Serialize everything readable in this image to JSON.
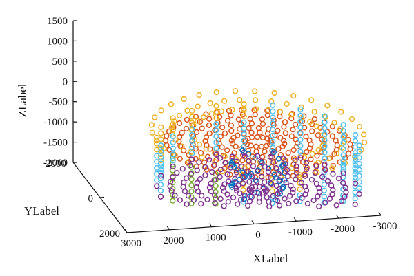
{
  "chart_data": {
    "type": "scatter",
    "projection": "3d",
    "marker": "circle",
    "xlabel": "XLabel",
    "ylabel": "YLabel",
    "zlabel": "ZLabel",
    "xlim": [
      -3000,
      3000
    ],
    "ylim": [
      -2000,
      2000
    ],
    "zlim": [
      -2000,
      1500
    ],
    "x_ticks": [
      3000,
      2000,
      1000,
      0,
      -1000,
      -2000,
      -3000
    ],
    "y_ticks": [
      -2000,
      0,
      2000
    ],
    "z_ticks": [
      1500,
      1000,
      500,
      0,
      -500,
      -1000,
      -1500,
      -2000
    ],
    "x_tick_labels": [
      "3000",
      "2000",
      "1000",
      "0",
      "-1000",
      "-2000",
      "-3000"
    ],
    "y_tick_labels": [
      "-2000",
      "0",
      "2000"
    ],
    "z_tick_labels": [
      "1500",
      "1000",
      "500",
      "0",
      "-500",
      "-1000",
      "-1500",
      "-2000"
    ],
    "grid": false,
    "colors": {
      "top_spiral": "#d95319",
      "upper_rings": "#edb120",
      "side_points": "#4dbeee",
      "inner_column": "#0072bd",
      "lower_left_points": "#77ac30",
      "bottom_spiral": "#7e2f8e"
    }
  }
}
